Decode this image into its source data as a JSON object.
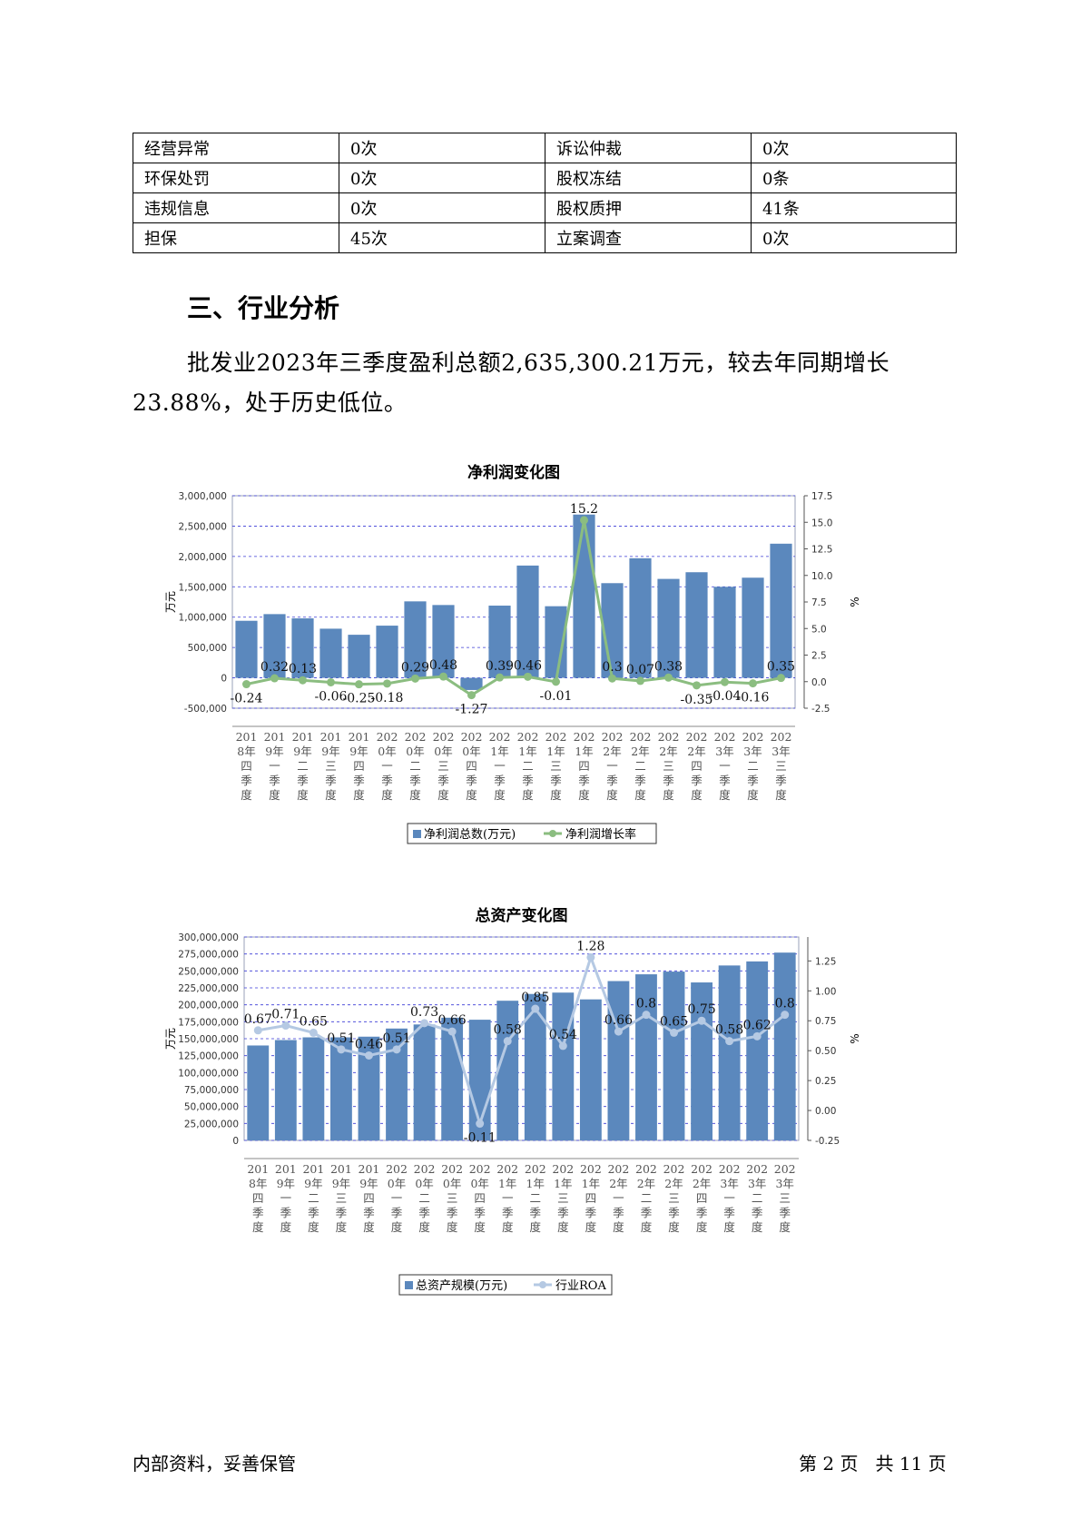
{
  "risk_table": {
    "rows": [
      [
        {
          "label": "经营异常",
          "value": "0次"
        },
        {
          "label": "诉讼仲裁",
          "value": "0次"
        }
      ],
      [
        {
          "label": "环保处罚",
          "value": "0次"
        },
        {
          "label": "股权冻结",
          "value": "0条"
        }
      ],
      [
        {
          "label": "违规信息",
          "value": "0次"
        },
        {
          "label": "股权质押",
          "value": "41条"
        }
      ],
      [
        {
          "label": "担保",
          "value": "45次"
        },
        {
          "label": "立案调查",
          "value": "0次"
        }
      ]
    ]
  },
  "section": {
    "title": "三、行业分析",
    "paragraph": "批发业2023年三季度盈利总额2,635,300.21万元，较去年同期增长23.88%，处于历史低位。"
  },
  "footer": {
    "left": "内部资料，妥善保管",
    "right": "第 2 页   共 11 页"
  },
  "chart_data": [
    {
      "type": "bar+line",
      "title": "净利润变化图",
      "ylabel": "万元",
      "y2label": "%",
      "categories": [
        "2018年四季度",
        "2019年一季度",
        "2019年二季度",
        "2019年三季度",
        "2019年四季度",
        "2020年一季度",
        "2020年二季度",
        "2020年三季度",
        "2020年四季度",
        "2021年一季度",
        "2021年二季度",
        "2021年三季度",
        "2021年四季度",
        "2022年一季度",
        "2022年二季度",
        "2022年三季度",
        "2022年四季度",
        "2023年一季度",
        "2023年二季度",
        "2023年三季度"
      ],
      "series": [
        {
          "name": "净利润总数(万元)",
          "kind": "bar",
          "color": "#5b88bd",
          "values": [
            940000,
            1050000,
            980000,
            810000,
            710000,
            860000,
            1260000,
            1200000,
            -200000,
            1190000,
            1850000,
            1180000,
            2690000,
            1560000,
            1970000,
            1630000,
            1740000,
            1500000,
            1650000,
            2210000
          ]
        },
        {
          "name": "净利润增长率",
          "kind": "line",
          "axis": "right",
          "color": "#8bbd80",
          "values": [
            -0.24,
            0.32,
            0.13,
            -0.06,
            -0.25,
            -0.18,
            0.29,
            0.48,
            -1.27,
            0.39,
            0.46,
            -0.01,
            15.2,
            0.3,
            0.07,
            0.38,
            -0.35,
            -0.04,
            -0.16,
            0.35
          ],
          "labels": [
            "-0.24",
            "0.32",
            "0.13",
            "-0.06",
            "-0.25",
            "-0.18",
            "0.29",
            "0.48",
            "-1.27",
            "0.39",
            "0.46",
            "-0.01",
            "15.2",
            "0.3",
            "0.07",
            "0.38",
            "-0.35",
            "-0.04",
            "-0.16",
            "0.35"
          ]
        }
      ],
      "ylim": [
        -500000,
        3000000
      ],
      "yticks": [
        "3,000,000",
        "2,500,000",
        "2,000,000",
        "1,500,000",
        "1,000,000",
        "500,000",
        "0",
        "-500,000"
      ],
      "ytick_values": [
        3000000,
        2500000,
        2000000,
        1500000,
        1000000,
        500000,
        0,
        -500000
      ],
      "y2lim": [
        -2.5,
        17.5
      ],
      "y2ticks": [
        "17.5",
        "15.0",
        "12.5",
        "10.0",
        "7.5",
        "5.0",
        "2.5",
        "0.0",
        "-2.5"
      ],
      "y2tick_values": [
        17.5,
        15,
        12.5,
        10,
        7.5,
        5,
        2.5,
        0,
        -2.5
      ],
      "grid": true,
      "legend": "bottom"
    },
    {
      "type": "bar+line",
      "title": "总资产变化图",
      "ylabel": "万元",
      "y2label": "%",
      "categories": [
        "2018年四季度",
        "2019年一季度",
        "2019年二季度",
        "2019年三季度",
        "2019年四季度",
        "2020年一季度",
        "2020年二季度",
        "2020年三季度",
        "2020年四季度",
        "2021年一季度",
        "2021年二季度",
        "2021年三季度",
        "2021年四季度",
        "2022年一季度",
        "2022年二季度",
        "2022年三季度",
        "2022年四季度",
        "2023年一季度",
        "2023年二季度",
        "2023年三季度"
      ],
      "series": [
        {
          "name": "总资产规模(万元)",
          "kind": "bar",
          "color": "#5b88bd",
          "values": [
            140000000,
            148000000,
            152000000,
            152000000,
            153000000,
            165000000,
            171000000,
            181000000,
            178000000,
            206000000,
            216000000,
            218000000,
            208000000,
            235000000,
            245000000,
            249000000,
            233000000,
            258000000,
            264000000,
            277000000
          ]
        },
        {
          "name": "行业ROA",
          "kind": "line",
          "axis": "right",
          "color": "#b5c9e3",
          "values": [
            0.67,
            0.71,
            0.65,
            0.51,
            0.46,
            0.51,
            0.73,
            0.66,
            -0.11,
            0.58,
            0.85,
            0.54,
            1.28,
            0.66,
            0.8,
            0.65,
            0.75,
            0.58,
            0.62,
            0.8
          ],
          "labels": [
            "0.67",
            "0.71",
            "0.65",
            "0.51",
            "0.46",
            "0.51",
            "0.73",
            "0.66",
            "-0.11",
            "0.58",
            "0.85",
            "0.54",
            "1.28",
            "0.66",
            "0.8",
            "0.65",
            "0.75",
            "0.58",
            "0.62",
            "0.8"
          ]
        }
      ],
      "ylim": [
        0,
        300000000
      ],
      "yticks": [
        "300,000,000",
        "275,000,000",
        "250,000,000",
        "225,000,000",
        "200,000,000",
        "175,000,000",
        "150,000,000",
        "125,000,000",
        "100,000,000",
        "75,000,000",
        "50,000,000",
        "25,000,000",
        "0"
      ],
      "ytick_values": [
        300000000,
        275000000,
        250000000,
        225000000,
        200000000,
        175000000,
        150000000,
        125000000,
        100000000,
        75000000,
        50000000,
        25000000,
        0
      ],
      "y2lim": [
        -0.25,
        1.45
      ],
      "y2ticks": [
        "1.25",
        "1.00",
        "0.75",
        "0.50",
        "0.25",
        "0.00",
        "-0.25"
      ],
      "y2tick_values": [
        1.25,
        1,
        0.75,
        0.5,
        0.25,
        0,
        -0.25
      ],
      "grid": true,
      "legend": "bottom"
    }
  ]
}
